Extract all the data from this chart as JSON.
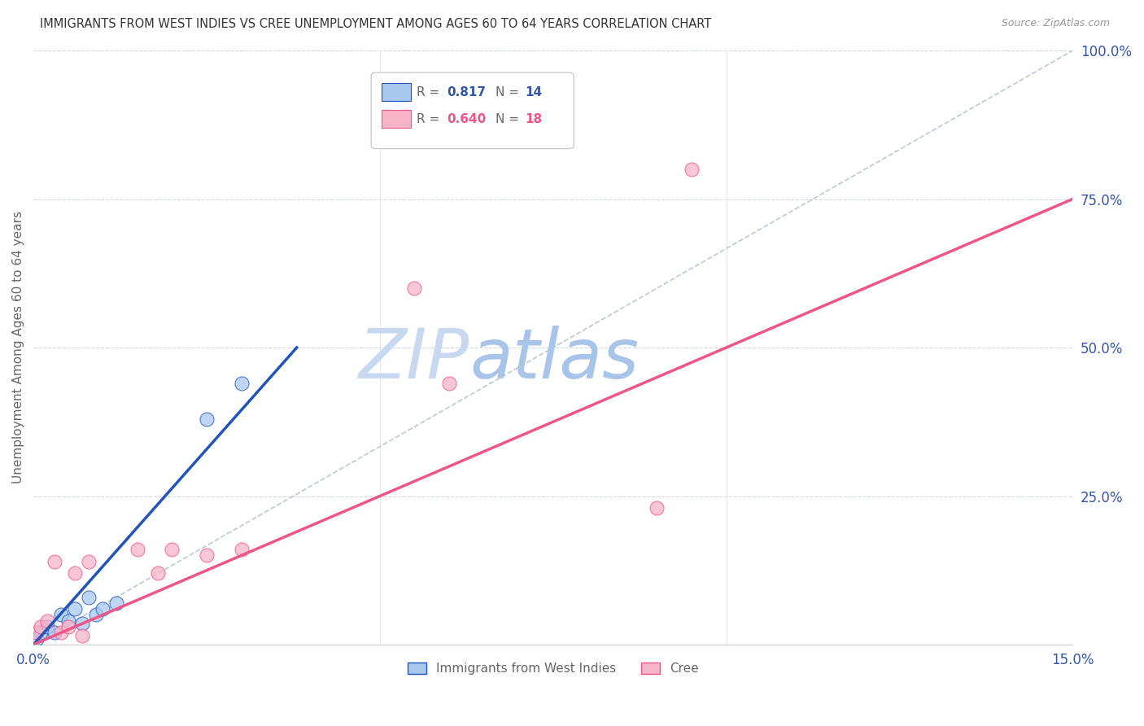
{
  "title": "IMMIGRANTS FROM WEST INDIES VS CREE UNEMPLOYMENT AMONG AGES 60 TO 64 YEARS CORRELATION CHART",
  "source": "Source: ZipAtlas.com",
  "ylabel": "Unemployment Among Ages 60 to 64 years",
  "xlim": [
    0,
    0.15
  ],
  "ylim": [
    0,
    1.0
  ],
  "xticks": [
    0.0,
    0.05,
    0.1,
    0.15
  ],
  "xtick_labels": [
    "0.0%",
    "",
    "",
    "15.0%"
  ],
  "yticks_right": [
    0,
    0.25,
    0.5,
    0.75,
    1.0
  ],
  "ytick_labels_right": [
    "",
    "25.0%",
    "50.0%",
    "75.0%",
    "100.0%"
  ],
  "blue_R": "0.817",
  "blue_N": "14",
  "pink_R": "0.640",
  "pink_N": "18",
  "blue_color": "#A8C8F0",
  "pink_color": "#F8B4C8",
  "blue_line_color": "#2255BB",
  "pink_line_color": "#EE5588",
  "blue_scatter_x": [
    0.0005,
    0.001,
    0.002,
    0.003,
    0.004,
    0.005,
    0.006,
    0.007,
    0.008,
    0.009,
    0.01,
    0.012,
    0.025,
    0.03
  ],
  "blue_scatter_y": [
    0.01,
    0.02,
    0.03,
    0.02,
    0.05,
    0.04,
    0.06,
    0.035,
    0.08,
    0.05,
    0.06,
    0.07,
    0.38,
    0.44
  ],
  "pink_scatter_x": [
    0.0005,
    0.001,
    0.002,
    0.003,
    0.004,
    0.005,
    0.006,
    0.007,
    0.008,
    0.015,
    0.018,
    0.02,
    0.025,
    0.03,
    0.055,
    0.06,
    0.09,
    0.095
  ],
  "pink_scatter_y": [
    0.02,
    0.03,
    0.04,
    0.14,
    0.02,
    0.03,
    0.12,
    0.015,
    0.14,
    0.16,
    0.12,
    0.16,
    0.15,
    0.16,
    0.6,
    0.44,
    0.23,
    0.8
  ],
  "blue_line_x0": 0.0,
  "blue_line_y0": 0.0,
  "blue_line_x1": 0.038,
  "blue_line_y1": 0.5,
  "pink_line_x0": 0.0,
  "pink_line_y0": 0.0,
  "pink_line_x1": 0.15,
  "pink_line_y1": 0.75,
  "ref_line_x0": 0.0,
  "ref_line_y0": 0.0,
  "ref_line_x1": 0.15,
  "ref_line_y1": 1.0,
  "watermark_zip": "ZIP",
  "watermark_atlas": "atlas",
  "watermark_color_zip": "#C8D8F0",
  "watermark_color_atlas": "#A8C4E8",
  "grid_color": "#D0D8E8",
  "background_color": "#FFFFFF",
  "title_color": "#333333",
  "source_color": "#999999",
  "axis_label_color": "#666666",
  "tick_color": "#3355AA",
  "legend_label_color_blue": "#3355AA",
  "legend_label_color_pink": "#EE5588",
  "legend_text_color": "#666666"
}
